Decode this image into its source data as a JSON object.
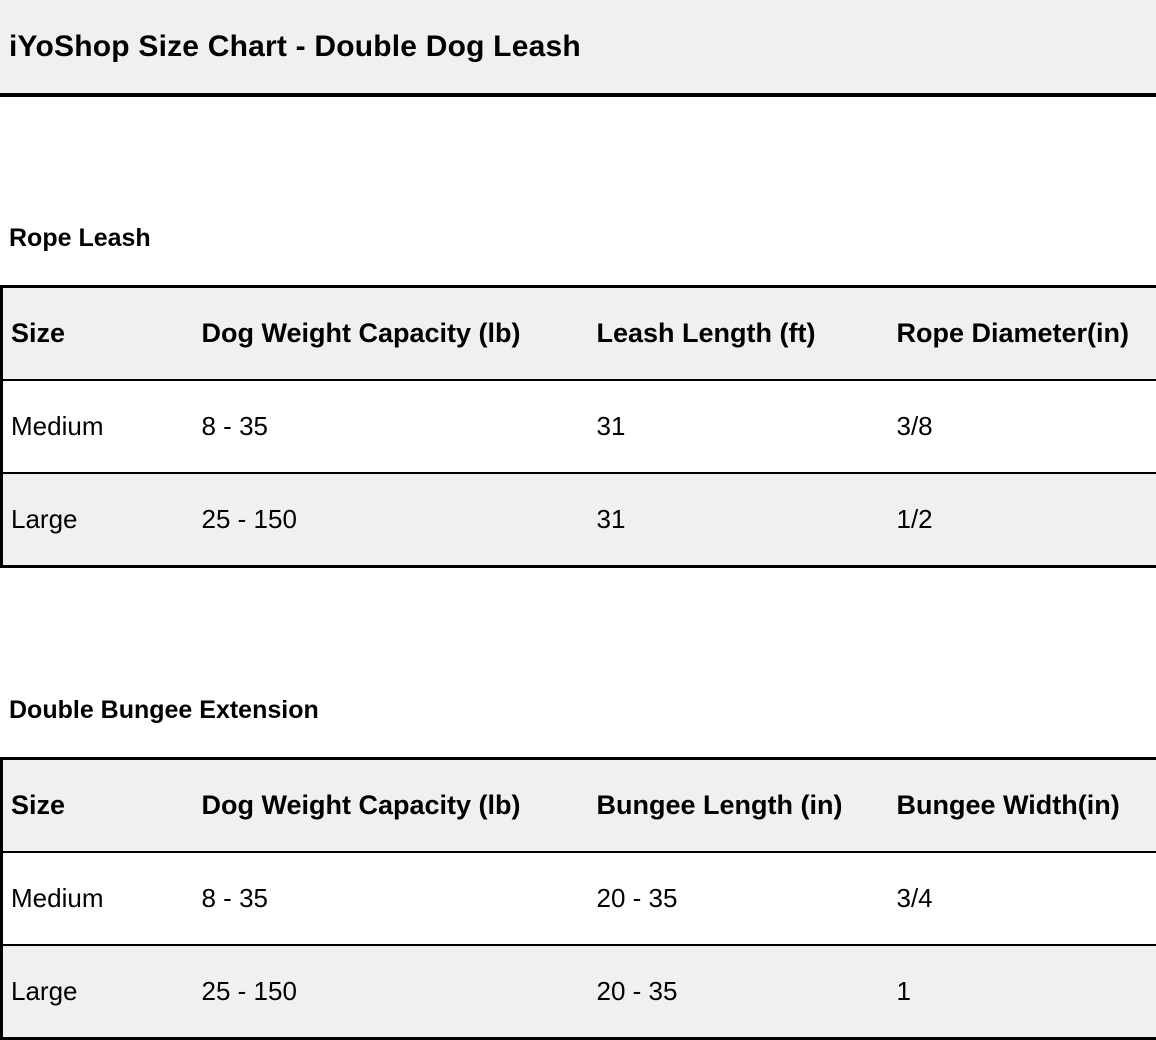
{
  "header": {
    "title": "iYoShop Size Chart - Double Dog Leash"
  },
  "colors": {
    "panel_bg": "#f0f0f0",
    "row_alt_bg": "#f0f0f0",
    "border": "#000000",
    "text": "#000000"
  },
  "sections": [
    {
      "heading": "Rope Leash",
      "table": {
        "columns": [
          "Size",
          "Dog Weight Capacity (lb)",
          "Leash Length (ft)",
          "Rope Diameter(in)"
        ],
        "rows": [
          {
            "size": "Medium",
            "weight": "8 - 35",
            "length": "31",
            "diameter": "3/8"
          },
          {
            "size": "Large",
            "weight": "25 - 150",
            "length": "31",
            "diameter": "1/2"
          }
        ]
      }
    },
    {
      "heading": "Double Bungee Extension",
      "table": {
        "columns": [
          "Size",
          "Dog Weight Capacity (lb)",
          "Bungee Length (in)",
          "Bungee Width(in)"
        ],
        "rows": [
          {
            "size": "Medium",
            "weight": "8 - 35",
            "length": "20 - 35",
            "width": "3/4"
          },
          {
            "size": "Large",
            "weight": "25 - 150",
            "length": "20 - 35",
            "width": "1"
          }
        ]
      }
    }
  ]
}
